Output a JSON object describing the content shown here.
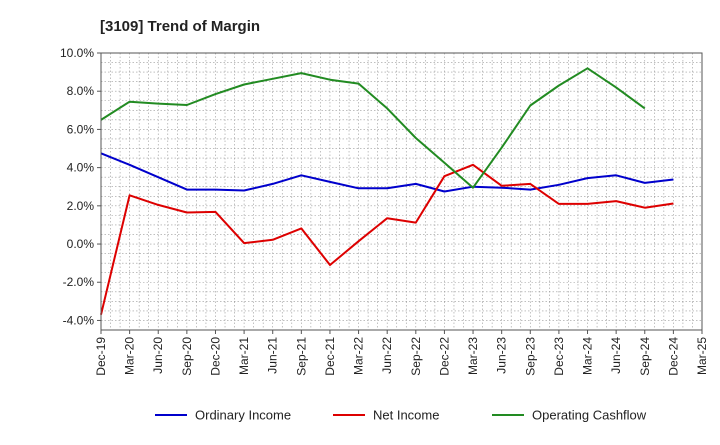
{
  "chart_data": {
    "type": "line",
    "title": "[3109]  Trend of Margin",
    "xlabel": "",
    "ylabel": "",
    "categories": [
      "Dec-19",
      "Mar-20",
      "Jun-20",
      "Sep-20",
      "Dec-20",
      "Mar-21",
      "Jun-21",
      "Sep-21",
      "Dec-21",
      "Mar-22",
      "Jun-22",
      "Sep-22",
      "Dec-22",
      "Mar-23",
      "Jun-23",
      "Sep-23",
      "Dec-23",
      "Mar-24",
      "Jun-24",
      "Sep-24",
      "Dec-24",
      "Mar-25"
    ],
    "yticks": [
      "10.0%",
      "8.0%",
      "6.0%",
      "4.0%",
      "2.0%",
      "0.0%",
      "-2.0%",
      "-4.0%"
    ],
    "ylim": [
      -4.5,
      10.0
    ],
    "grid": true,
    "legend_position": "bottom",
    "series": [
      {
        "name": "Ordinary Income",
        "color": "#0000cc",
        "values": [
          4.75,
          4.15,
          3.5,
          2.85,
          2.85,
          2.8,
          3.15,
          3.6,
          3.25,
          2.92,
          2.92,
          3.15,
          2.75,
          3.0,
          2.95,
          2.85,
          3.1,
          3.45,
          3.6,
          3.2,
          3.38,
          null
        ]
      },
      {
        "name": "Net Income",
        "color": "#dd0000",
        "values": [
          -3.7,
          2.55,
          2.05,
          1.65,
          1.68,
          0.05,
          0.22,
          0.82,
          -1.1,
          0.15,
          1.35,
          1.12,
          3.55,
          4.15,
          3.05,
          3.15,
          2.1,
          2.1,
          2.25,
          1.9,
          2.12,
          null
        ]
      },
      {
        "name": "Operating Cashflow",
        "color": "#228b22",
        "values": [
          6.5,
          7.45,
          7.35,
          7.28,
          7.85,
          8.35,
          8.65,
          8.95,
          8.6,
          8.4,
          7.1,
          5.55,
          4.25,
          2.95,
          5.05,
          7.25,
          8.3,
          9.2,
          8.2,
          7.1,
          null,
          null
        ]
      }
    ]
  }
}
